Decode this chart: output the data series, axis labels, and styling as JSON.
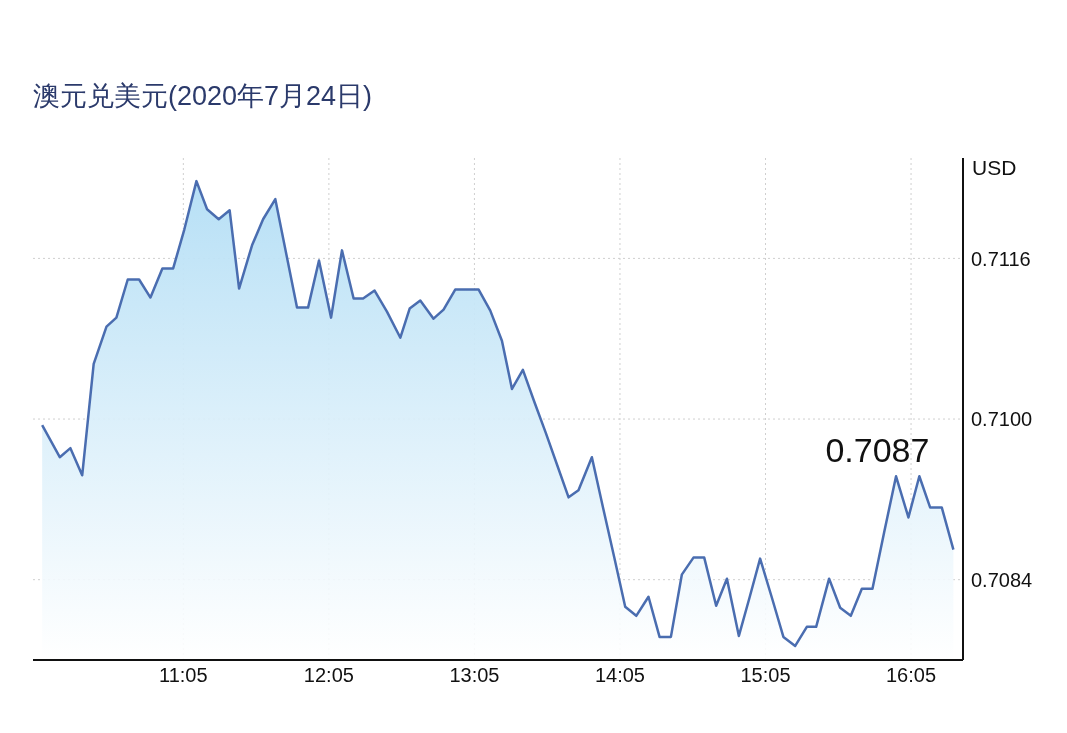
{
  "chart_data": {
    "type": "area",
    "title": "澳元兑美元(2020年7月24日)",
    "ylabel": "USD",
    "annotations": [
      {
        "text": "0.7087",
        "x": 16.374,
        "y": 0.7087
      }
    ],
    "x": [
      10.113,
      10.234,
      10.307,
      10.388,
      10.467,
      10.555,
      10.623,
      10.701,
      10.779,
      10.857,
      10.939,
      11.013,
      11.09,
      11.173,
      11.246,
      11.326,
      11.401,
      11.466,
      11.555,
      11.631,
      11.715,
      11.864,
      11.94,
      12.015,
      12.098,
      12.173,
      12.253,
      12.318,
      12.397,
      12.482,
      12.574,
      12.638,
      12.711,
      12.802,
      12.871,
      12.951,
      13.032,
      13.112,
      13.192,
      13.272,
      13.341,
      13.416,
      13.495,
      13.574,
      13.652,
      13.73,
      13.798,
      13.89,
      13.968,
      14.044,
      14.119,
      14.195,
      14.279,
      14.355,
      14.433,
      14.508,
      14.588,
      14.662,
      14.744,
      14.818,
      14.9,
      14.973,
      15.046,
      15.127,
      15.206,
      15.287,
      15.367,
      15.431,
      15.52,
      15.596,
      15.669,
      15.745,
      15.818,
      15.898,
      15.98,
      16.065,
      16.14,
      16.214,
      16.294,
      16.374
    ],
    "series": [
      {
        "color": "#4a6db0",
        "values": [
          0.70994,
          0.70962,
          0.70971,
          0.70944,
          0.71055,
          0.71092,
          0.71101,
          0.71139,
          0.71139,
          0.71121,
          0.7115,
          0.7115,
          0.71189,
          0.71237,
          0.71209,
          0.71199,
          0.71208,
          0.7113,
          0.71173,
          0.71199,
          0.71219,
          0.71111,
          0.71111,
          0.71158,
          0.71101,
          0.71168,
          0.7112,
          0.7112,
          0.71128,
          0.71107,
          0.71081,
          0.7111,
          0.71118,
          0.711,
          0.71109,
          0.71129,
          0.71129,
          0.71129,
          0.71108,
          0.71078,
          0.7103,
          0.71049,
          0.71017,
          0.70986,
          0.70954,
          0.70922,
          0.70929,
          0.70962,
          0.70911,
          0.70862,
          0.70813,
          0.70804,
          0.70823,
          0.70783,
          0.70783,
          0.70845,
          0.70862,
          0.70862,
          0.70814,
          0.70841,
          0.70784,
          0.70822,
          0.70861,
          0.70822,
          0.70783,
          0.70774,
          0.70793,
          0.70793,
          0.70841,
          0.70812,
          0.70804,
          0.70831,
          0.70831,
          0.70887,
          0.70943,
          0.70902,
          0.70943,
          0.70912,
          0.70912,
          0.7087
        ]
      }
    ],
    "xlim": [
      10.05,
      16.44
    ],
    "ylim": [
      0.7076,
      0.7126
    ],
    "xticks": [
      {
        "value": 11.083,
        "label": "11:05"
      },
      {
        "value": 12.083,
        "label": "12:05"
      },
      {
        "value": 13.083,
        "label": "13:05"
      },
      {
        "value": 14.083,
        "label": "14:05"
      },
      {
        "value": 15.083,
        "label": "15:05"
      },
      {
        "value": 16.083,
        "label": "16:05"
      }
    ],
    "yticks": [
      0.7084,
      {
        "value": 0.71,
        "label": "0.7100"
      },
      0.7116
    ],
    "grid": true
  }
}
